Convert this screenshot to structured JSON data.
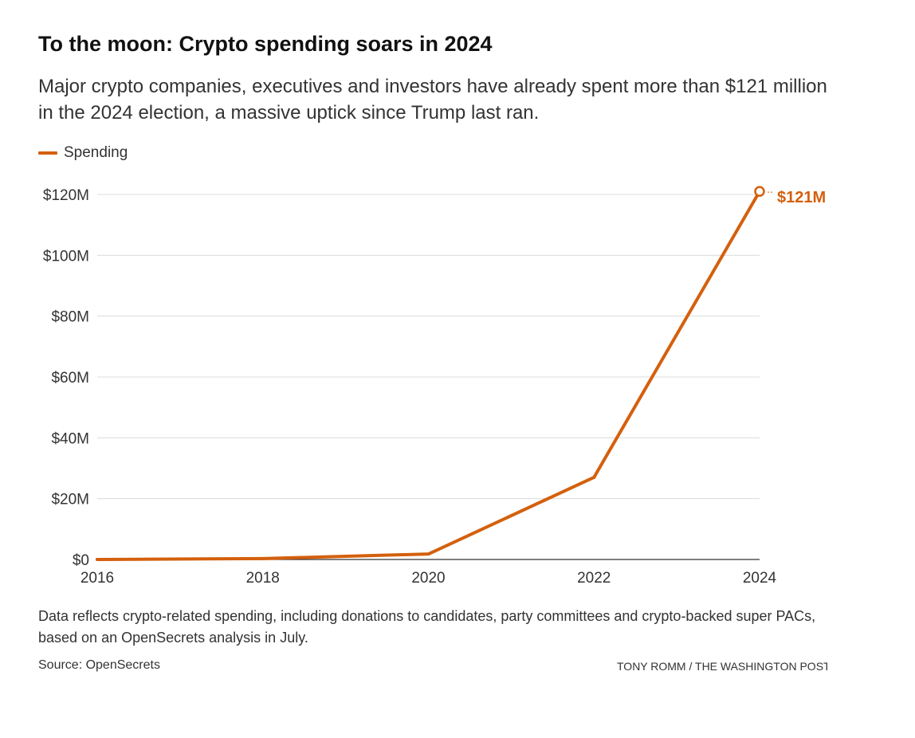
{
  "header": {
    "title": "To the moon: Crypto spending soars in 2024",
    "subtitle": "Major crypto companies, executives and investors have already spent more than $121 million in the 2024 election, a massive uptick since Trump last ran."
  },
  "colors": {
    "series": "#d4600d",
    "grid": "#dcdcdc",
    "axis": "#333333",
    "text": "#333333"
  },
  "chart_data": {
    "type": "line",
    "title": "To the moon: Crypto spending soars in 2024",
    "x": [
      2016,
      2018,
      2020,
      2022,
      2024
    ],
    "x_tick_labels": [
      "2016",
      "2018",
      "2020",
      "2022",
      "2024"
    ],
    "series": [
      {
        "name": "Spending",
        "values": [
          0,
          0.3,
          1.8,
          27,
          121
        ]
      }
    ],
    "y_unit": "millions of dollars",
    "ylim": [
      0,
      120
    ],
    "y_ticks": [
      0,
      20,
      40,
      60,
      80,
      100,
      120
    ],
    "y_tick_labels": [
      "$0",
      "$20M",
      "$40M",
      "$60M",
      "$80M",
      "$100M",
      "$120M"
    ],
    "xlabel": "",
    "ylabel": "",
    "grid": true,
    "legend": "top-left",
    "annotations": [
      {
        "x": 2024,
        "y": 121,
        "label": "$121M"
      }
    ]
  },
  "footer": {
    "note": "Data reflects crypto-related spending, including donations to candidates, party committees and crypto-backed super PACs, based on an OpenSecrets analysis in July.",
    "source": "Source: OpenSecrets",
    "credit": "TONY ROMM / THE WASHINGTON POST"
  }
}
